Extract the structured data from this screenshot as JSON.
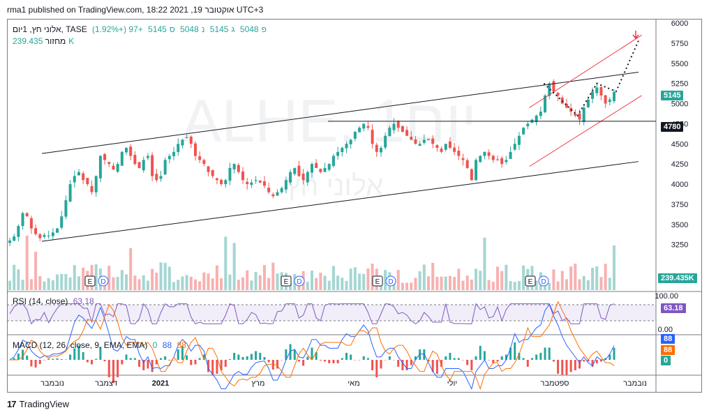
{
  "header": {
    "text": "rma1 published on TradingView.com, 18:22 2021 ,19 אוקטובר UTC+3"
  },
  "legend": {
    "symbol": "אלוני חץ, 1יום, TASE",
    "open_label": "פ",
    "open": "5048",
    "high_label": "ג",
    "high": "5145",
    "low_label": "נ",
    "low": "5048",
    "close_label": "ס",
    "close": "5145",
    "change": "+97 (+1.92%)",
    "volume_label": "מחזור",
    "volume": "239.435K"
  },
  "watermark": {
    "symbol": "ALHE, 1יום",
    "name": "אלוני חץ"
  },
  "rsi": {
    "label": "RSI (14, close)",
    "value": "63.18",
    "axis_top": "100.00",
    "axis_bottom": "0.00"
  },
  "macd": {
    "label": "MACD (12, 26, close, 9, EMA, EMA)",
    "hist": "0",
    "macd": "88",
    "signal": "88"
  },
  "tags": {
    "price": "5145",
    "level": "4780",
    "volume": "239.435K",
    "rsi": "63.18",
    "macd": "88",
    "signal": "88",
    "hist": "0"
  },
  "events": [
    "E",
    "D"
  ],
  "footer": {
    "brand": "TradingView",
    "logo": "17"
  },
  "colors": {
    "up": "#26a69a",
    "down": "#ef5350",
    "volume_up": "#a5d6d2",
    "volume_down": "#f7b1b0",
    "rsi": "#7e57c2",
    "macd": "#2962ff",
    "signal": "#ff6d00",
    "channel": "#f23645",
    "trend": "#131722"
  },
  "chart_data": {
    "type": "candlestick",
    "x_axis": [
      "נובמבר",
      "דצמבר",
      "2021",
      "מרץ",
      "מאי",
      "יולי",
      "ספטמבר",
      "נובמבר"
    ],
    "y_axis": {
      "ticks": [
        6000,
        5750,
        5500,
        5250,
        5000,
        4750,
        4500,
        4250,
        4000,
        3750,
        3500,
        3250
      ],
      "range": [
        3100,
        6000
      ]
    },
    "horizontal_level": 4780,
    "projection_points": [
      {
        "date": "2021-09-10",
        "price": 5250
      },
      {
        "date": "2021-10-01",
        "price": 4850
      },
      {
        "date": "2021-10-13",
        "price": 5250
      },
      {
        "date": "2021-10-25",
        "price": 5150
      },
      {
        "date": "2021-11-08",
        "price": 5780
      }
    ],
    "trendlines": [
      {
        "name": "upper",
        "from": [
          "2020-11-01",
          4380
        ],
        "to": [
          "2021-11-08",
          5390
        ]
      },
      {
        "name": "lower",
        "from": [
          "2020-11-01",
          3290
        ],
        "to": [
          "2021-11-08",
          4280
        ]
      },
      {
        "name": "channel-upper",
        "from": [
          "2021-09-01",
          4950
        ],
        "to": [
          "2021-11-10",
          5850
        ]
      },
      {
        "name": "channel-lower",
        "from": [
          "2021-09-01",
          4220
        ],
        "to": [
          "2021-11-10",
          5100
        ]
      }
    ],
    "close_series": [
      3300,
      3350,
      3480,
      3640,
      3600,
      3450,
      3380,
      3330,
      3370,
      3360,
      3400,
      3450,
      3600,
      3800,
      4000,
      4100,
      4150,
      4050,
      4000,
      3900,
      4100,
      4350,
      4300,
      4250,
      4180,
      4250,
      4400,
      4450,
      4350,
      4250,
      4200,
      4300,
      4350,
      4100,
      4050,
      4100,
      4300,
      4350,
      4400,
      4500,
      4550,
      4580,
      4500,
      4350,
      4300,
      4250,
      4150,
      4100,
      4050,
      4000,
      4050,
      4200,
      4250,
      4150,
      4050,
      4000,
      4020,
      4050,
      4020,
      3980,
      3900,
      3850,
      3900,
      3950,
      4050,
      4150,
      4200,
      4100,
      4050,
      4150,
      4250,
      4200,
      4150,
      4200,
      4250,
      4350,
      4400,
      4450,
      4500,
      4550,
      4650,
      4700,
      4750,
      4700,
      4500,
      4400,
      4450,
      4600,
      4700,
      4750,
      4700,
      4650,
      4600,
      4550,
      4500,
      4500,
      4550,
      4550,
      4500,
      4450,
      4400,
      4500,
      4450,
      4400,
      4350,
      4300,
      4200,
      4050,
      4300,
      4350,
      4400,
      4350,
      4300,
      4300,
      4250,
      4300,
      4400,
      4500,
      4600,
      4700,
      4750,
      4800,
      4850,
      4900,
      5100,
      5250,
      5150,
      5100,
      5000,
      4950,
      4900,
      4850,
      4800,
      4950,
      5050,
      5150,
      5200,
      5100,
      5000,
      5050,
      5145
    ],
    "rsi_value": 63.18,
    "macd_value": 88,
    "signal_value": 88,
    "hist_value": 0,
    "last_volume": "239.435K"
  }
}
